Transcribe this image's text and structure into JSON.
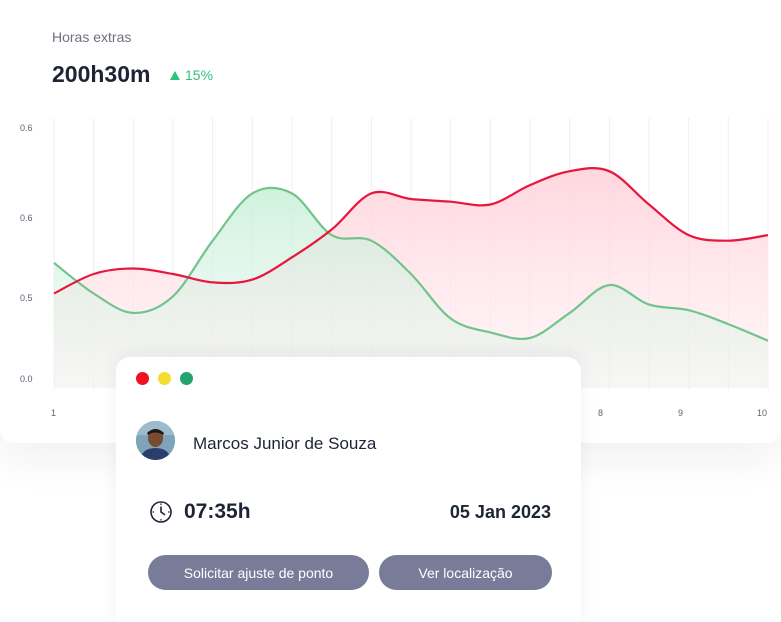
{
  "chart": {
    "title": "Horas extras",
    "total": "200h30m",
    "change": "15%"
  },
  "chart_data": {
    "type": "area",
    "x": [
      1,
      2,
      3,
      4,
      5,
      6,
      7,
      8,
      9,
      10
    ],
    "x_tick_labels": [
      "1",
      "8",
      "9",
      "10"
    ],
    "y_tick_labels": [
      "0.6",
      "0.6",
      "0.5",
      "0.0"
    ],
    "grid": "vertical",
    "series": [
      {
        "color": "#e8153c",
        "points": [
          [
            1,
            0.34
          ],
          [
            1.5,
            0.41
          ],
          [
            2,
            0.43
          ],
          [
            2.5,
            0.41
          ],
          [
            3,
            0.38
          ],
          [
            3.5,
            0.39
          ],
          [
            4,
            0.47
          ],
          [
            4.5,
            0.57
          ],
          [
            5,
            0.7
          ],
          [
            5.5,
            0.68
          ],
          [
            6,
            0.67
          ],
          [
            6.5,
            0.66
          ],
          [
            7,
            0.73
          ],
          [
            7.5,
            0.78
          ],
          [
            8,
            0.78
          ],
          [
            8.5,
            0.66
          ],
          [
            9,
            0.55
          ],
          [
            9.5,
            0.53
          ],
          [
            10,
            0.55
          ]
        ]
      },
      {
        "color": "#72c38c",
        "points": [
          [
            1,
            0.45
          ],
          [
            1.5,
            0.34
          ],
          [
            2,
            0.27
          ],
          [
            2.5,
            0.33
          ],
          [
            3,
            0.53
          ],
          [
            3.5,
            0.7
          ],
          [
            4,
            0.7
          ],
          [
            4.5,
            0.55
          ],
          [
            5,
            0.53
          ],
          [
            5.5,
            0.41
          ],
          [
            6,
            0.25
          ],
          [
            6.5,
            0.2
          ],
          [
            7,
            0.18
          ],
          [
            7.5,
            0.27
          ],
          [
            8,
            0.37
          ],
          [
            8.5,
            0.3
          ],
          [
            9,
            0.28
          ],
          [
            9.5,
            0.23
          ],
          [
            10,
            0.17
          ]
        ]
      }
    ]
  },
  "profile": {
    "name": "Marcos Junior de Souza",
    "time": "07:35h",
    "date": "05 Jan 2023",
    "adjust_button": "Solicitar ajuste de ponto",
    "location_button": "Ver localização",
    "icons": {
      "clock": "clock-icon",
      "avatar": "user-photo"
    }
  }
}
